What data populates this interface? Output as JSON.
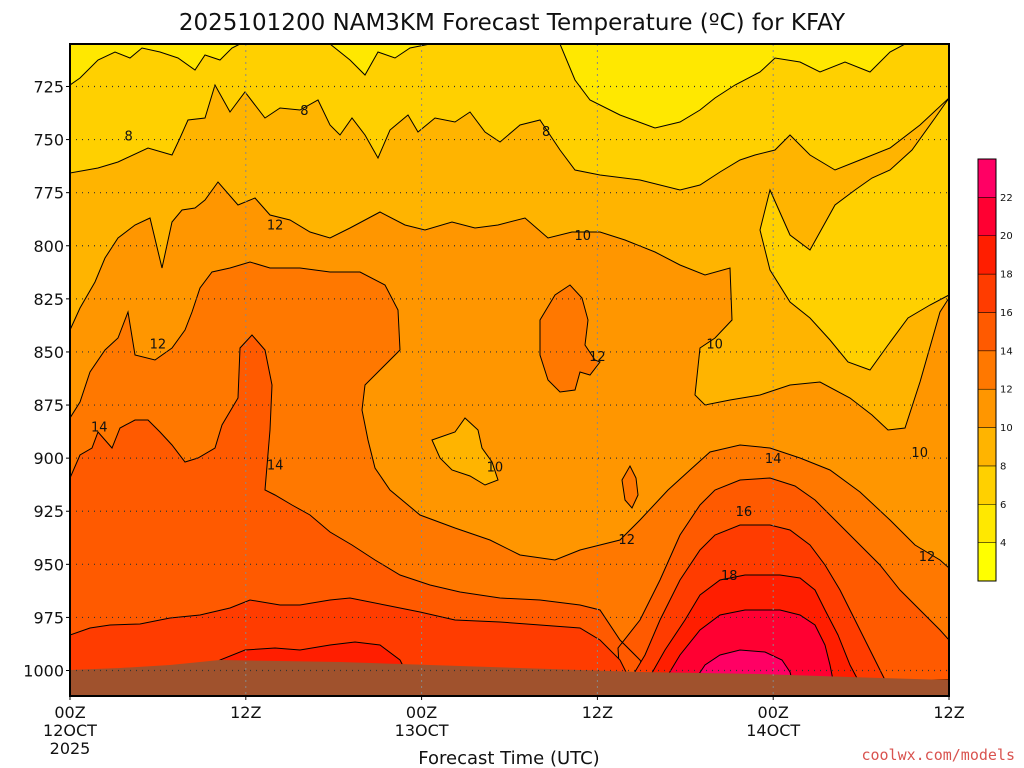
{
  "chart_data": {
    "type": "heatmap",
    "title": "2025101200 NAM3KM Forecast Temperature (ºC) for KFAY",
    "xlabel": "Forecast Time (UTC)",
    "credit": "coolwx.com/models",
    "y_ticks": [
      "725",
      "750",
      "775",
      "800",
      "825",
      "850",
      "875",
      "900",
      "925",
      "950",
      "975",
      "1000"
    ],
    "x_ticks": [
      {
        "top": "00Z",
        "mid": "12OCT",
        "bot": "2025"
      },
      {
        "top": "12Z",
        "mid": "",
        "bot": ""
      },
      {
        "top": "00Z",
        "mid": "13OCT",
        "bot": ""
      },
      {
        "top": "12Z",
        "mid": "",
        "bot": ""
      },
      {
        "top": "00Z",
        "mid": "14OCT",
        "bot": ""
      },
      {
        "top": "12Z",
        "mid": "",
        "bot": ""
      }
    ],
    "x_range_hours": [
      0,
      60
    ],
    "y_range_hPa": [
      705,
      1012
    ],
    "colorbar_labels": [
      "4",
      "6",
      "8",
      "10",
      "12",
      "14",
      "16",
      "18",
      "20",
      "22"
    ],
    "colors": {
      "lt4": "#ffff00",
      "4_6": "#ffe800",
      "6_8": "#ffd000",
      "8_10": "#ffb400",
      "10_12": "#ff9600",
      "12_14": "#ff7800",
      "14_16": "#ff5a00",
      "16_18": "#ff3c00",
      "18_20": "#ff1e00",
      "20_22": "#ff0032",
      "gt22": "#ff0064",
      "ground": "#a0522d"
    },
    "contour_labels": [
      {
        "text": "8",
        "hour": 16,
        "hPa": 736
      },
      {
        "text": "8",
        "hour": 4,
        "hPa": 748
      },
      {
        "text": "8",
        "hour": 32.5,
        "hPa": 746
      },
      {
        "text": "12",
        "hour": 14,
        "hPa": 790
      },
      {
        "text": "10",
        "hour": 35,
        "hPa": 795
      },
      {
        "text": "12",
        "hour": 6,
        "hPa": 846
      },
      {
        "text": "10",
        "hour": 44,
        "hPa": 846
      },
      {
        "text": "12",
        "hour": 36,
        "hPa": 852
      },
      {
        "text": "14",
        "hour": 2,
        "hPa": 885
      },
      {
        "text": "10",
        "hour": 58,
        "hPa": 897
      },
      {
        "text": "10",
        "hour": 29,
        "hPa": 904
      },
      {
        "text": "14",
        "hour": 14,
        "hPa": 903
      },
      {
        "text": "14",
        "hour": 48,
        "hPa": 900
      },
      {
        "text": "12",
        "hour": 38,
        "hPa": 938
      },
      {
        "text": "16",
        "hour": 46,
        "hPa": 925
      },
      {
        "text": "18",
        "hour": 45,
        "hPa": 955
      },
      {
        "text": "12",
        "hour": 58.5,
        "hPa": 946
      }
    ],
    "grid": true
  }
}
